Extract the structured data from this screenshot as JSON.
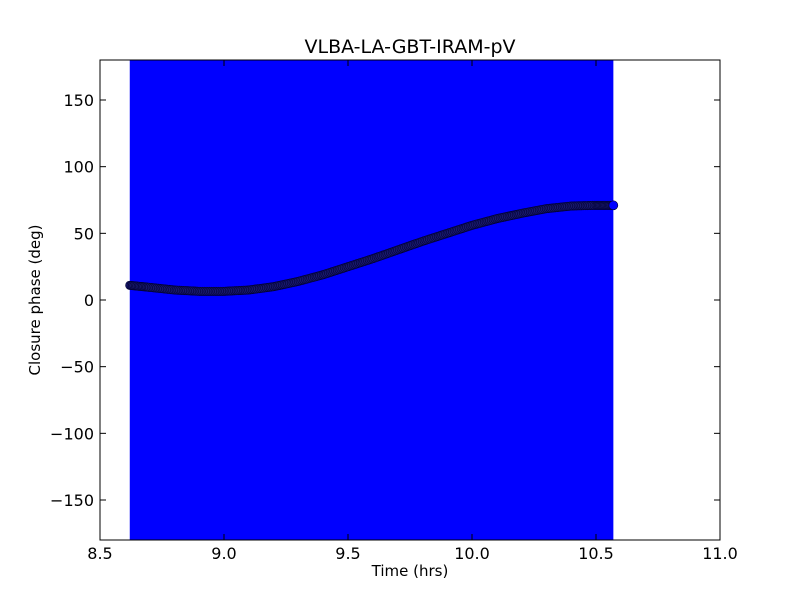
{
  "chart_data": {
    "type": "scatter",
    "title": "VLBA-LA-GBT-IRAM-pV",
    "xlabel": "Time (hrs)",
    "ylabel": "Closure phase (deg)",
    "xlim": [
      8.5,
      11.0
    ],
    "ylim": [
      -180,
      180
    ],
    "xticks": [
      {
        "value": 8.5,
        "label": "8.5"
      },
      {
        "value": 9.0,
        "label": "9.0"
      },
      {
        "value": 9.5,
        "label": "9.5"
      },
      {
        "value": 10.0,
        "label": "10.0"
      },
      {
        "value": 10.5,
        "label": "10.5"
      },
      {
        "value": 11.0,
        "label": "11.0"
      }
    ],
    "yticks": [
      {
        "value": -150,
        "label": "−150"
      },
      {
        "value": -100,
        "label": "−100"
      },
      {
        "value": -50,
        "label": "−50"
      },
      {
        "value": 0,
        "label": "0"
      },
      {
        "value": 50,
        "label": "50"
      },
      {
        "value": 100,
        "label": "100"
      },
      {
        "value": 150,
        "label": "150"
      }
    ],
    "grid": false,
    "error_band": {
      "x_start": 8.62,
      "x_end": 10.57,
      "color": "#0000ff"
    },
    "series": [
      {
        "color": "#1a1a6e",
        "x": [
          8.62,
          8.7,
          8.8,
          8.9,
          9.0,
          9.1,
          9.2,
          9.3,
          9.4,
          9.5,
          9.6,
          9.7,
          9.8,
          9.9,
          10.0,
          10.1,
          10.2,
          10.3,
          10.4,
          10.5,
          10.57
        ],
        "y": [
          11,
          9.5,
          7.5,
          6.5,
          6.5,
          7.5,
          10,
          14,
          19,
          25,
          31,
          37.5,
          44,
          50,
          56,
          61,
          65,
          68.5,
          70.5,
          71,
          71
        ]
      }
    ]
  }
}
